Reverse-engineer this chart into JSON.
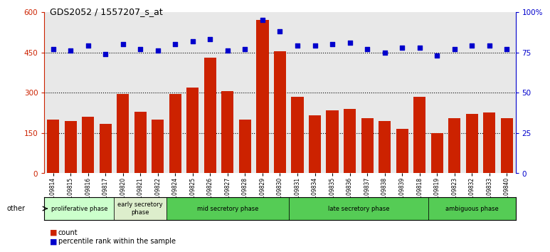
{
  "title": "GDS2052 / 1557207_s_at",
  "samples": [
    "GSM109814",
    "GSM109815",
    "GSM109816",
    "GSM109817",
    "GSM109820",
    "GSM109821",
    "GSM109822",
    "GSM109824",
    "GSM109825",
    "GSM109826",
    "GSM109827",
    "GSM109828",
    "GSM109829",
    "GSM109830",
    "GSM109831",
    "GSM109834",
    "GSM109835",
    "GSM109836",
    "GSM109837",
    "GSM109838",
    "GSM109839",
    "GSM109818",
    "GSM109819",
    "GSM109823",
    "GSM109832",
    "GSM109833",
    "GSM109840"
  ],
  "counts": [
    200,
    195,
    210,
    185,
    295,
    230,
    200,
    295,
    320,
    430,
    305,
    200,
    570,
    455,
    285,
    215,
    235,
    240,
    205,
    195,
    165,
    285,
    150,
    205,
    220,
    225,
    205
  ],
  "percentiles": [
    77,
    76,
    79,
    74,
    80,
    77,
    76,
    80,
    82,
    83,
    76,
    77,
    95,
    88,
    79,
    79,
    80,
    81,
    77,
    75,
    78,
    78,
    73,
    77,
    79,
    79,
    77
  ],
  "phases": [
    {
      "name": "proliferative phase",
      "start": 0,
      "end": 4,
      "color": "#ccffcc"
    },
    {
      "name": "early secretory\nphase",
      "start": 4,
      "end": 7,
      "color": "#ddeecc"
    },
    {
      "name": "mid secretory phase",
      "start": 7,
      "end": 14,
      "color": "#55cc55"
    },
    {
      "name": "late secretory phase",
      "start": 14,
      "end": 22,
      "color": "#55cc55"
    },
    {
      "name": "ambiguous phase",
      "start": 22,
      "end": 27,
      "color": "#55cc55"
    }
  ],
  "left_ylim": [
    0,
    600
  ],
  "right_ylim": [
    0,
    100
  ],
  "left_yticks": [
    0,
    150,
    300,
    450,
    600
  ],
  "right_yticks": [
    0,
    25,
    50,
    75,
    100
  ],
  "right_yticklabels": [
    "0",
    "25",
    "50",
    "75",
    "100%"
  ],
  "bar_color": "#cc2200",
  "dot_color": "#0000cc",
  "bg_color": "#e8e8e8",
  "other_label": "other"
}
